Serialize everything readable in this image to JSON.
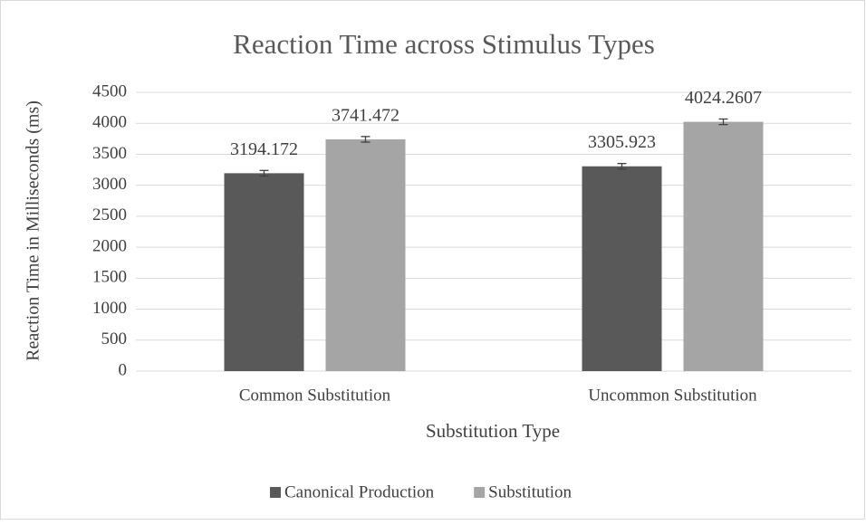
{
  "chart_data": {
    "type": "bar",
    "title": "Reaction Time across Stimulus Types",
    "x_label": "Substitution Type",
    "y_label": "Reaction Time in Milliseconds (ms)",
    "categories": [
      "Common Substitution",
      "Uncommon Substitution"
    ],
    "series": [
      {
        "name": "Canonical Production",
        "color": "#595959",
        "values": [
          3194.172,
          3305.923
        ],
        "errors": [
          45,
          45
        ]
      },
      {
        "name": "Substitution",
        "color": "#a5a5a5",
        "values": [
          3741.472,
          4024.2607
        ],
        "errors": [
          45,
          45
        ]
      }
    ],
    "ylim": [
      0,
      4500
    ],
    "yticks": [
      0,
      500,
      1000,
      1500,
      2000,
      2500,
      3000,
      3500,
      4000,
      4500
    ],
    "grid": true,
    "legend": "bottom"
  }
}
